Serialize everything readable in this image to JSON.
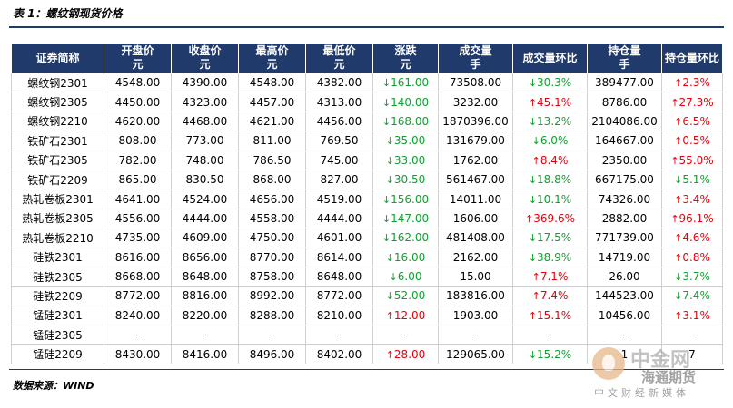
{
  "title": "表 1：螺纹钢现货价格",
  "source": "数据来源：WIND",
  "watermark": {
    "cn": "中金网",
    "brand": "海通期货",
    "sub": "中文财经新媒体"
  },
  "colors": {
    "header_bg": "#1f3a6b",
    "up": "#e8000b",
    "down": "#0ca22d"
  },
  "headers": [
    {
      "l1": "证券简称",
      "l2": ""
    },
    {
      "l1": "开盘价",
      "l2": "元"
    },
    {
      "l1": "收盘价",
      "l2": "元"
    },
    {
      "l1": "最高价",
      "l2": "元"
    },
    {
      "l1": "最低价",
      "l2": "元"
    },
    {
      "l1": "涨跌",
      "l2": "元"
    },
    {
      "l1": "成交量",
      "l2": "手"
    },
    {
      "l1": "成交量环比",
      "l2": ""
    },
    {
      "l1": "持仓量",
      "l2": "手"
    },
    {
      "l1": "持仓量环比",
      "l2": ""
    }
  ],
  "rows": [
    {
      "name": "螺纹钢2301",
      "open": "4548.00",
      "close": "4390.00",
      "high": "4548.00",
      "low": "4382.00",
      "chg": "161.00",
      "chg_dir": "down",
      "vol": "73508.00",
      "vol_chg": "30.3%",
      "vol_dir": "down",
      "oi": "389477.00",
      "oi_chg": "2.3%",
      "oi_dir": "up"
    },
    {
      "name": "螺纹钢2305",
      "open": "4450.00",
      "close": "4323.00",
      "high": "4457.00",
      "low": "4313.00",
      "chg": "140.00",
      "chg_dir": "down",
      "vol": "3232.00",
      "vol_chg": "45.1%",
      "vol_dir": "up",
      "oi": "8786.00",
      "oi_chg": "27.3%",
      "oi_dir": "up"
    },
    {
      "name": "螺纹钢2210",
      "open": "4620.00",
      "close": "4468.00",
      "high": "4621.00",
      "low": "4456.00",
      "chg": "168.00",
      "chg_dir": "down",
      "vol": "1870396.00",
      "vol_chg": "13.2%",
      "vol_dir": "down",
      "oi": "2104086.00",
      "oi_chg": "6.5%",
      "oi_dir": "up"
    },
    {
      "name": "铁矿石2301",
      "open": "808.00",
      "close": "773.00",
      "high": "811.00",
      "low": "769.50",
      "chg": "35.00",
      "chg_dir": "down",
      "vol": "131679.00",
      "vol_chg": "6.0%",
      "vol_dir": "down",
      "oi": "164667.00",
      "oi_chg": "0.5%",
      "oi_dir": "up"
    },
    {
      "name": "铁矿石2305",
      "open": "782.00",
      "close": "748.00",
      "high": "786.50",
      "low": "745.00",
      "chg": "33.00",
      "chg_dir": "down",
      "vol": "1762.00",
      "vol_chg": "8.4%",
      "vol_dir": "up",
      "oi": "2350.00",
      "oi_chg": "55.0%",
      "oi_dir": "up"
    },
    {
      "name": "铁矿石2209",
      "open": "865.00",
      "close": "830.50",
      "high": "868.00",
      "low": "827.00",
      "chg": "30.50",
      "chg_dir": "down",
      "vol": "561467.00",
      "vol_chg": "18.8%",
      "vol_dir": "down",
      "oi": "667175.00",
      "oi_chg": "5.1%",
      "oi_dir": "down"
    },
    {
      "name": "热轧卷板2301",
      "open": "4641.00",
      "close": "4524.00",
      "high": "4656.00",
      "low": "4519.00",
      "chg": "156.00",
      "chg_dir": "down",
      "vol": "14011.00",
      "vol_chg": "10.1%",
      "vol_dir": "down",
      "oi": "74326.00",
      "oi_chg": "3.4%",
      "oi_dir": "up"
    },
    {
      "name": "热轧卷板2305",
      "open": "4556.00",
      "close": "4444.00",
      "high": "4558.00",
      "low": "4444.00",
      "chg": "147.00",
      "chg_dir": "down",
      "vol": "1606.00",
      "vol_chg": "369.6%",
      "vol_dir": "up",
      "oi": "2882.00",
      "oi_chg": "96.1%",
      "oi_dir": "up"
    },
    {
      "name": "热轧卷板2210",
      "open": "4735.00",
      "close": "4609.00",
      "high": "4750.00",
      "low": "4601.00",
      "chg": "162.00",
      "chg_dir": "down",
      "vol": "481408.00",
      "vol_chg": "17.5%",
      "vol_dir": "down",
      "oi": "771739.00",
      "oi_chg": "4.6%",
      "oi_dir": "up"
    },
    {
      "name": "硅铁2301",
      "open": "8616.00",
      "close": "8656.00",
      "high": "8770.00",
      "low": "8614.00",
      "chg": "16.00",
      "chg_dir": "down",
      "vol": "2162.00",
      "vol_chg": "38.9%",
      "vol_dir": "down",
      "oi": "14719.00",
      "oi_chg": "0.8%",
      "oi_dir": "up"
    },
    {
      "name": "硅铁2305",
      "open": "8668.00",
      "close": "8648.00",
      "high": "8758.00",
      "low": "8648.00",
      "chg": "6.00",
      "chg_dir": "down",
      "vol": "15.00",
      "vol_chg": "7.1%",
      "vol_dir": "up",
      "oi": "26.00",
      "oi_chg": "3.7%",
      "oi_dir": "down"
    },
    {
      "name": "硅铁2209",
      "open": "8772.00",
      "close": "8816.00",
      "high": "8992.00",
      "low": "8772.00",
      "chg": "52.00",
      "chg_dir": "down",
      "vol": "183816.00",
      "vol_chg": "7.4%",
      "vol_dir": "up",
      "oi": "144523.00",
      "oi_chg": "7.4%",
      "oi_dir": "down"
    },
    {
      "name": "锰硅2301",
      "open": "8240.00",
      "close": "8220.00",
      "high": "8288.00",
      "low": "8210.00",
      "chg": "12.00",
      "chg_dir": "up",
      "vol": "1903.00",
      "vol_chg": "15.1%",
      "vol_dir": "up",
      "oi": "10456.00",
      "oi_chg": "3.1%",
      "oi_dir": "up"
    },
    {
      "name": "锰硅2305",
      "open": "-",
      "close": "-",
      "high": "-",
      "low": "-",
      "chg": "-",
      "chg_dir": "none",
      "vol": "-",
      "vol_chg": "-",
      "vol_dir": "none",
      "oi": "-",
      "oi_chg": "-",
      "oi_dir": "none"
    },
    {
      "name": "锰硅2209",
      "open": "8430.00",
      "close": "8416.00",
      "high": "8496.00",
      "low": "8402.00",
      "chg": "28.00",
      "chg_dir": "up",
      "vol": "129065.00",
      "vol_chg": "15.2%",
      "vol_dir": "down",
      "oi": "1",
      "oi_chg": "7",
      "oi_dir": "none"
    }
  ]
}
